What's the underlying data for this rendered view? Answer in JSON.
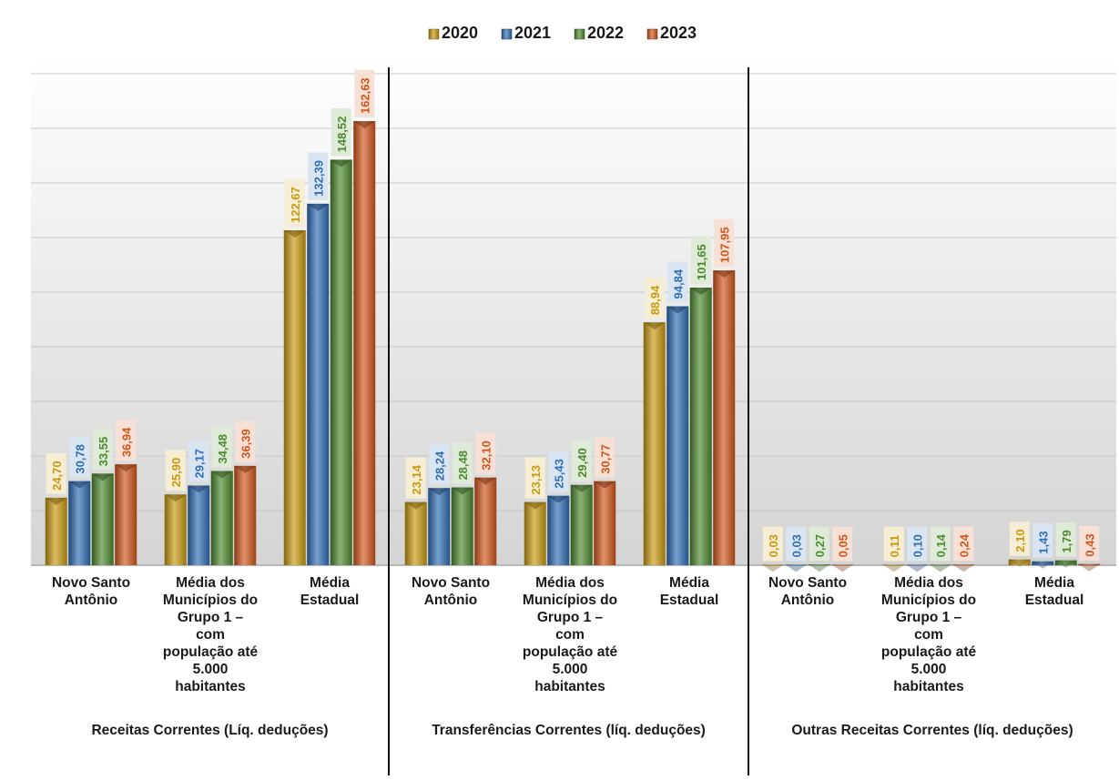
{
  "chart_data": {
    "type": "bar",
    "legend_position": "top",
    "grid": true,
    "ylim": [
      0,
      180
    ],
    "series": [
      {
        "name": "2020",
        "color": "#c99a10"
      },
      {
        "name": "2021",
        "color": "#2f6fb5"
      },
      {
        "name": "2022",
        "color": "#4e8a2e"
      },
      {
        "name": "2023",
        "color": "#d2561b"
      }
    ],
    "groups": [
      {
        "label": "Receitas Correntes (Líq. deduções)",
        "categories": [
          {
            "label": [
              "Novo Santo",
              "Antônio"
            ],
            "values": [
              24.7,
              30.78,
              33.55,
              36.94
            ],
            "labels": [
              "24,70",
              "30,78",
              "33,55",
              "36,94"
            ]
          },
          {
            "label": [
              "Média dos",
              "Municípios do",
              "Grupo 1 –",
              "com",
              "população até",
              "5.000",
              "habitantes"
            ],
            "values": [
              25.9,
              29.17,
              34.48,
              36.39
            ],
            "labels": [
              "25,90",
              "29,17",
              "34,48",
              "36,39"
            ]
          },
          {
            "label": [
              "Média",
              "Estadual"
            ],
            "values": [
              122.67,
              132.39,
              148.52,
              162.63
            ],
            "labels": [
              "122,67",
              "132,39",
              "148,52",
              "162,63"
            ]
          }
        ]
      },
      {
        "label": "Transferências Correntes (líq. deduções)",
        "categories": [
          {
            "label": [
              "Novo Santo",
              "Antônio"
            ],
            "values": [
              23.14,
              28.24,
              28.48,
              32.1
            ],
            "labels": [
              "23,14",
              "28,24",
              "28,48",
              "32,10"
            ]
          },
          {
            "label": [
              "Média dos",
              "Municípios do",
              "Grupo 1 –",
              "com",
              "população até",
              "5.000",
              "habitantes"
            ],
            "values": [
              23.13,
              25.43,
              29.4,
              30.77
            ],
            "labels": [
              "23,13",
              "25,43",
              "29,40",
              "30,77"
            ]
          },
          {
            "label": [
              "Média",
              "Estadual"
            ],
            "values": [
              88.94,
              94.84,
              101.65,
              107.95
            ],
            "labels": [
              "88,94",
              "94,84",
              "101,65",
              "107,95"
            ]
          }
        ]
      },
      {
        "label": "Outras Receitas Correntes (líq. deduções)",
        "categories": [
          {
            "label": [
              "Novo Santo",
              "Antônio"
            ],
            "values": [
              0.03,
              0.03,
              0.27,
              0.05
            ],
            "labels": [
              "0,03",
              "0,03",
              "0,27",
              "0,05"
            ]
          },
          {
            "label": [
              "Média dos",
              "Municípios do",
              "Grupo 1 –",
              "com",
              "população até",
              "5.000",
              "habitantes"
            ],
            "values": [
              0.11,
              0.1,
              0.14,
              0.24
            ],
            "labels": [
              "0,11",
              "0,10",
              "0,14",
              "0,24"
            ]
          },
          {
            "label": [
              "Média",
              "Estadual"
            ],
            "values": [
              2.1,
              1.43,
              1.79,
              0.43
            ],
            "labels": [
              "2,10",
              "1,43",
              "1,79",
              "0,43"
            ]
          }
        ]
      }
    ]
  }
}
